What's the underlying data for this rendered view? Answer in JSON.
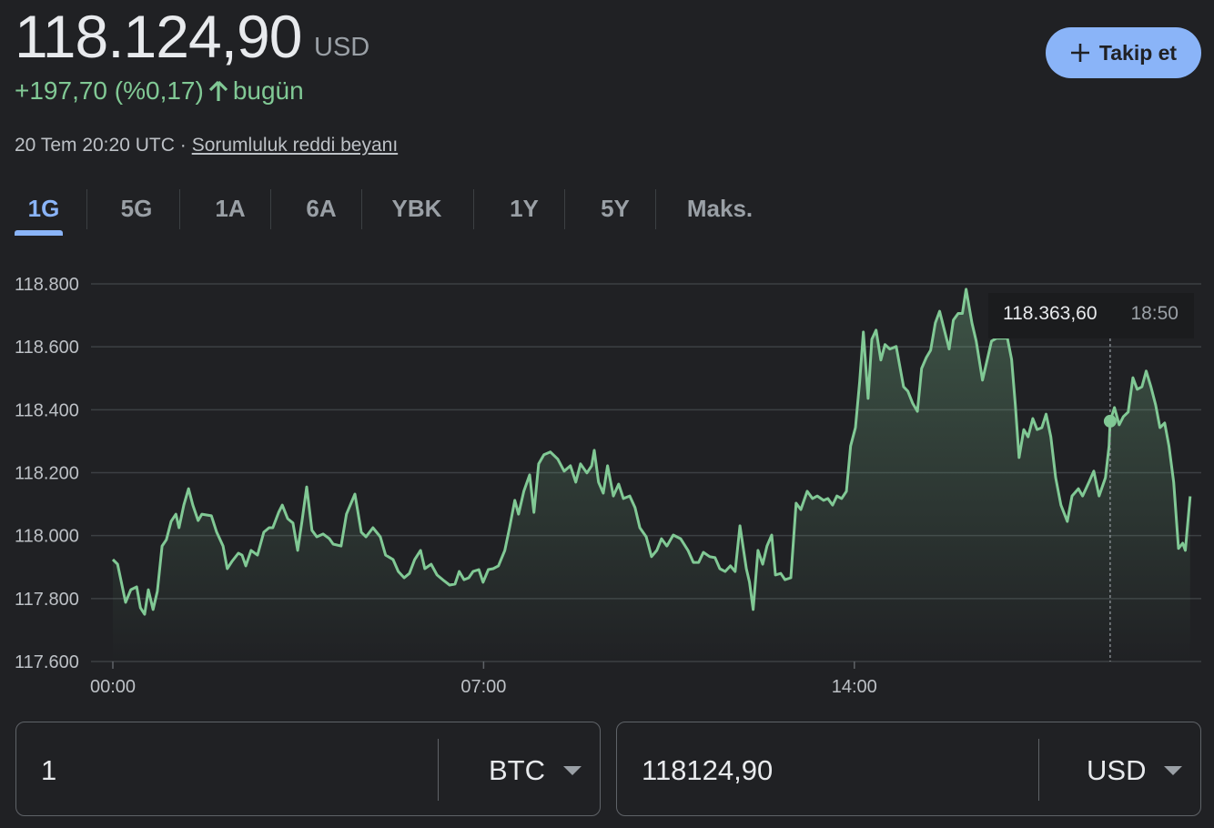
{
  "header": {
    "price": "118.124,90",
    "currency": "USD",
    "change": "+197,70 (%0,17)",
    "change_period": "bugün",
    "timestamp": "20 Tem 20:20 UTC ·",
    "disclaimer": "Sorumluluk reddi beyanı",
    "follow_button": "Takip et"
  },
  "tabs": [
    "1G",
    "5G",
    "1A",
    "6A",
    "YBK",
    "1Y",
    "5Y",
    "Maks."
  ],
  "chart_data": {
    "type": "line",
    "color": "#81c995",
    "grid": true,
    "xlim": [
      0,
      20.55
    ],
    "xticks": [
      {
        "value": 0,
        "label": "00:00"
      },
      {
        "value": 7,
        "label": "07:00"
      },
      {
        "value": 14,
        "label": "14:00"
      }
    ],
    "ylim": [
      117600,
      118800
    ],
    "yticks": [
      {
        "value": 117600,
        "label": "117.600"
      },
      {
        "value": 117800,
        "label": "117.800"
      },
      {
        "value": 118000,
        "label": "118.000"
      },
      {
        "value": 118200,
        "label": "118.200"
      },
      {
        "value": 118400,
        "label": "118.400"
      },
      {
        "value": 118600,
        "label": "118.600"
      },
      {
        "value": 118800,
        "label": "118.800"
      }
    ],
    "tooltip": {
      "x": 18.83,
      "value": 118363.6,
      "value_label": "118.363,60",
      "x_label": "18:50"
    },
    "x": [
      0,
      0.09,
      0.24,
      0.34,
      0.45,
      0.52,
      0.6,
      0.67,
      0.76,
      0.84,
      0.93,
      1.01,
      1.1,
      1.19,
      1.25,
      1.34,
      1.43,
      1.51,
      1.61,
      1.68,
      1.86,
      1.96,
      2.08,
      2.16,
      2.25,
      2.37,
      2.44,
      2.51,
      2.61,
      2.73,
      2.85,
      2.95,
      3.02,
      3.13,
      3.2,
      3.3,
      3.4,
      3.49,
      3.57,
      3.66,
      3.76,
      3.85,
      3.97,
      4.09,
      4.16,
      4.31,
      4.41,
      4.57,
      4.69,
      4.78,
      4.91,
      5.05,
      5.15,
      5.29,
      5.39,
      5.5,
      5.6,
      5.7,
      5.81,
      5.89,
      6.01,
      6.12,
      6.25,
      6.36,
      6.46,
      6.54,
      6.63,
      6.72,
      6.8,
      6.91,
      6.99,
      7.09,
      7.18,
      7.28,
      7.4,
      7.49,
      7.59,
      7.66,
      7.76,
      7.87,
      7.95,
      8.04,
      8.14,
      8.26,
      8.4,
      8.52,
      8.64,
      8.74,
      8.83,
      8.95,
      9.04,
      9.09,
      9.17,
      9.26,
      9.34,
      9.45,
      9.55,
      9.64,
      9.76,
      9.86,
      9.95,
      10.07,
      10.17,
      10.27,
      10.36,
      10.46,
      10.58,
      10.72,
      10.86,
      10.96,
      11.06,
      11.15,
      11.27,
      11.37,
      11.46,
      11.56,
      11.66,
      11.75,
      11.84,
      11.96,
      12.02,
      12.09,
      12.18,
      12.27,
      12.35,
      12.44,
      12.51,
      12.61,
      12.69,
      12.8,
      12.9,
      12.99,
      13.11,
      13.21,
      13.3,
      13.42,
      13.5,
      13.59,
      13.67,
      13.76,
      13.85,
      13.93,
      14.02,
      14.1,
      14.17,
      14.26,
      14.33,
      14.41,
      14.5,
      14.58,
      14.67,
      14.79,
      14.93,
      15.01,
      15.1,
      15.19,
      15.27,
      15.36,
      15.44,
      15.53,
      15.61,
      15.7,
      15.79,
      15.87,
      15.96,
      16.04,
      16.11,
      16.22,
      16.3,
      16.42,
      16.51,
      16.59,
      16.68,
      16.77,
      16.89,
      16.97,
      17.04,
      17.11,
      17.2,
      17.28,
      17.37,
      17.45,
      17.54,
      17.62,
      17.71,
      17.8,
      17.9,
      18.02,
      18.11,
      18.23,
      18.31,
      18.43,
      18.52,
      18.62,
      18.74,
      18.81,
      18.83,
      18.91,
      19.0,
      19.08,
      19.17,
      19.26,
      19.34,
      19.43,
      19.51,
      19.6,
      19.69,
      19.77,
      19.86,
      19.94,
      20.03,
      20.12,
      20.2,
      20.25,
      20.34
    ],
    "values": [
      117924,
      117909,
      117788,
      117828,
      117837,
      117771,
      117750,
      117828,
      117765,
      117823,
      117967,
      117987,
      118045,
      118068,
      118025,
      118097,
      118149,
      118097,
      118048,
      118068,
      118063,
      118011,
      117967,
      117895,
      117918,
      117944,
      117938,
      117904,
      117953,
      117938,
      118011,
      118025,
      118025,
      118074,
      118097,
      118054,
      118040,
      117953,
      118045,
      118155,
      118017,
      117996,
      118005,
      117990,
      117973,
      117967,
      118068,
      118132,
      118011,
      117996,
      118025,
      117996,
      117938,
      117924,
      117886,
      117866,
      117880,
      117924,
      117953,
      117895,
      117909,
      117875,
      117857,
      117843,
      117846,
      117886,
      117860,
      117866,
      117886,
      117892,
      117852,
      117892,
      117895,
      117904,
      117953,
      118025,
      118112,
      118068,
      118141,
      118193,
      118074,
      118228,
      118257,
      118266,
      118243,
      118205,
      118222,
      118170,
      118228,
      118199,
      118222,
      118271,
      118170,
      118135,
      118222,
      118126,
      118164,
      118118,
      118126,
      118089,
      118025,
      117996,
      117933,
      117953,
      117990,
      117967,
      118002,
      117990,
      117953,
      117915,
      117915,
      117947,
      117933,
      117930,
      117895,
      117886,
      117904,
      117886,
      118031,
      117895,
      117852,
      117765,
      117953,
      117909,
      117967,
      118002,
      117875,
      117880,
      117860,
      117866,
      118103,
      118083,
      118141,
      118118,
      118126,
      118112,
      118118,
      118097,
      118126,
      118118,
      118141,
      118285,
      118343,
      118488,
      118647,
      118436,
      118624,
      118653,
      118558,
      118607,
      118593,
      118601,
      118473,
      118459,
      118421,
      118395,
      118531,
      118566,
      118589,
      118676,
      118713,
      118653,
      118593,
      118685,
      118706,
      118706,
      118783,
      118676,
      118618,
      118494,
      118560,
      118618,
      118627,
      118627,
      118627,
      118560,
      118415,
      118248,
      118337,
      118314,
      118372,
      118337,
      118343,
      118386,
      118314,
      118184,
      118097,
      118045,
      118126,
      118149,
      118126,
      118170,
      118205,
      118126,
      118184,
      118285,
      118364,
      118407,
      118352,
      118378,
      118393,
      118502,
      118465,
      118473,
      118523,
      118473,
      118415,
      118343,
      118358,
      118285,
      118170,
      117959,
      117976,
      117953,
      118124.9
    ]
  },
  "converter": {
    "from_amount": "1",
    "from_currency": "BTC",
    "to_amount": "118124,90",
    "to_currency": "USD"
  }
}
